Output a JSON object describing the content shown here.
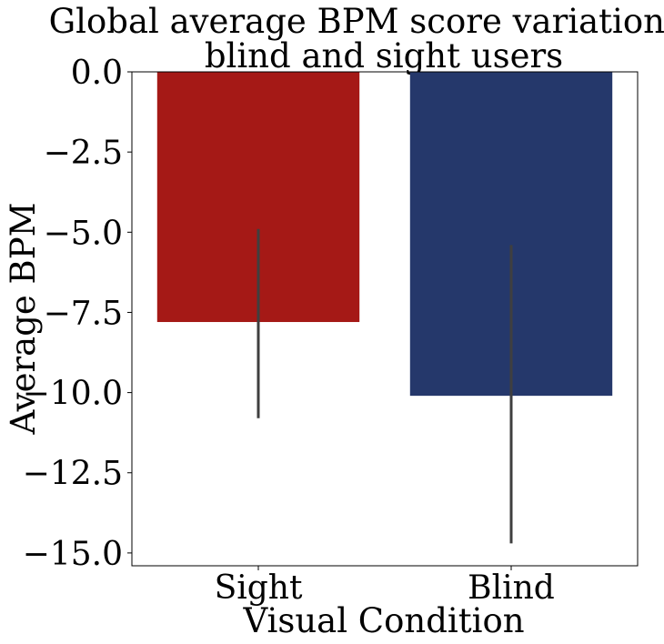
{
  "chart_data": {
    "type": "bar",
    "title_lines": [
      "Global average BPM score variation for",
      "blind and sight users"
    ],
    "xlabel": "Visual Condition",
    "ylabel": "Average BPM",
    "categories": [
      "Sight",
      "Blind"
    ],
    "values": [
      -7.8,
      -10.1
    ],
    "error_bars": [
      {
        "low": -10.8,
        "high": -4.9
      },
      {
        "low": -14.7,
        "high": -5.4
      }
    ],
    "colors": [
      "#a51916",
      "#25386b"
    ],
    "error_color": "#3f3f3f",
    "ylim": [
      -15.4,
      0.0
    ],
    "yticks": [
      0.0,
      -2.5,
      -5.0,
      -7.5,
      -10.0,
      -12.5,
      -15.0
    ],
    "ytick_labels": [
      "0.0",
      "−2.5",
      "−5.0",
      "−7.5",
      "−10.0",
      "−12.5",
      "−15.0"
    ],
    "grid": false,
    "legend": "none"
  }
}
